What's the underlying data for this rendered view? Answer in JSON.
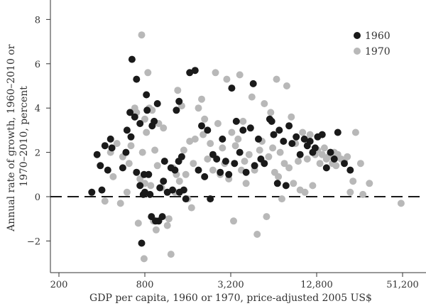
{
  "chart_data": {
    "type": "scatter",
    "title": "",
    "xlabel": "GDP per capita, 1960 or 1970, price-adjusted 2005 US$",
    "ylabel_lines": [
      "Annual rate of growth, 1960–2010 or",
      "1970–2010, percent"
    ],
    "x_scale": "log2",
    "xlim": [
      200,
      60000
    ],
    "ylim": [
      -3,
      8.7
    ],
    "x_ticks": [
      200,
      800,
      3200,
      12800,
      51200
    ],
    "x_tick_labels": [
      "200",
      "800",
      "3,200",
      "12,800",
      "51,200"
    ],
    "y_ticks": [
      -2,
      0,
      2,
      4,
      6,
      8
    ],
    "y_tick_labels": [
      "−2",
      "0",
      "2",
      "4",
      "6",
      "8"
    ],
    "reference_line": {
      "y": 0,
      "style": "dashed"
    },
    "legend_position": "top-right",
    "series": [
      {
        "name": "1960",
        "color": "#1a1a1a",
        "points": [
          [
            340,
            0.2
          ],
          [
            370,
            1.9
          ],
          [
            390,
            1.4
          ],
          [
            400,
            0.3
          ],
          [
            420,
            2.3
          ],
          [
            440,
            1.2
          ],
          [
            460,
            2.6
          ],
          [
            470,
            2.2
          ],
          [
            560,
            1.3
          ],
          [
            590,
            2.0
          ],
          [
            600,
            3.0
          ],
          [
            630,
            3.8
          ],
          [
            640,
            2.7
          ],
          [
            650,
            6.2
          ],
          [
            680,
            3.6
          ],
          [
            700,
            1.1
          ],
          [
            700,
            5.3
          ],
          [
            740,
            3.3
          ],
          [
            740,
            0.5
          ],
          [
            760,
            -2.1
          ],
          [
            780,
            0.1
          ],
          [
            790,
            1.0
          ],
          [
            800,
            0.2
          ],
          [
            820,
            4.6
          ],
          [
            830,
            3.9
          ],
          [
            850,
            1.0
          ],
          [
            870,
            0.1
          ],
          [
            890,
            -0.9
          ],
          [
            900,
            3.2
          ],
          [
            930,
            3.4
          ],
          [
            950,
            -1.1
          ],
          [
            980,
            4.2
          ],
          [
            1000,
            -1.1
          ],
          [
            1020,
            0.4
          ],
          [
            1060,
            -0.9
          ],
          [
            1080,
            0.7
          ],
          [
            1100,
            1.6
          ],
          [
            1150,
            0.2
          ],
          [
            1220,
            1.3
          ],
          [
            1250,
            0.3
          ],
          [
            1300,
            1.2
          ],
          [
            1330,
            3.9
          ],
          [
            1380,
            1.6
          ],
          [
            1390,
            4.3
          ],
          [
            1400,
            0.2
          ],
          [
            1450,
            1.8
          ],
          [
            1500,
            0.3
          ],
          [
            1550,
            -0.1
          ],
          [
            1650,
            5.6
          ],
          [
            1800,
            5.7
          ],
          [
            1900,
            1.2
          ],
          [
            2000,
            3.2
          ],
          [
            2100,
            0.9
          ],
          [
            2200,
            3.0
          ],
          [
            2300,
            -0.1
          ],
          [
            2400,
            1.9
          ],
          [
            2550,
            1.7
          ],
          [
            2700,
            1.1
          ],
          [
            2800,
            2.6
          ],
          [
            2950,
            1.6
          ],
          [
            3100,
            1.0
          ],
          [
            3250,
            4.9
          ],
          [
            3400,
            1.5
          ],
          [
            3500,
            3.4
          ],
          [
            3700,
            2.0
          ],
          [
            3900,
            3.0
          ],
          [
            4100,
            1.1
          ],
          [
            4400,
            3.1
          ],
          [
            4600,
            5.1
          ],
          [
            4700,
            1.4
          ],
          [
            5000,
            2.6
          ],
          [
            5200,
            1.7
          ],
          [
            5500,
            1.5
          ],
          [
            6000,
            3.5
          ],
          [
            6200,
            3.4
          ],
          [
            6400,
            2.8
          ],
          [
            6800,
            0.6
          ],
          [
            7000,
            3.0
          ],
          [
            7500,
            2.5
          ],
          [
            7800,
            0.5
          ],
          [
            8200,
            3.2
          ],
          [
            8600,
            2.4
          ],
          [
            9200,
            2.7
          ],
          [
            9800,
            1.9
          ],
          [
            10500,
            2.6
          ],
          [
            11000,
            2.3
          ],
          [
            11500,
            2.5
          ],
          [
            12000,
            2.0
          ],
          [
            12500,
            2.2
          ],
          [
            13000,
            2.7
          ],
          [
            14000,
            2.8
          ],
          [
            15000,
            1.3
          ],
          [
            16000,
            2.0
          ],
          [
            17000,
            1.7
          ],
          [
            18000,
            2.9
          ],
          [
            20000,
            1.5
          ],
          [
            22000,
            1.2
          ]
        ]
      },
      {
        "name": "1970",
        "color": "#b8b8b8",
        "points": [
          [
            420,
            -0.2
          ],
          [
            460,
            2.0
          ],
          [
            480,
            0.9
          ],
          [
            510,
            2.4
          ],
          [
            540,
            -0.3
          ],
          [
            560,
            1.8
          ],
          [
            600,
            0.2
          ],
          [
            620,
            1.5
          ],
          [
            640,
            2.3
          ],
          [
            680,
            4.0
          ],
          [
            700,
            3.8
          ],
          [
            720,
            -1.2
          ],
          [
            740,
            0.8
          ],
          [
            760,
            7.3
          ],
          [
            770,
            2.0
          ],
          [
            790,
            -2.8
          ],
          [
            800,
            3.5
          ],
          [
            800,
            0.6
          ],
          [
            820,
            2.9
          ],
          [
            840,
            5.6
          ],
          [
            860,
            4.0
          ],
          [
            880,
            0.5
          ],
          [
            900,
            3.9
          ],
          [
            920,
            -1.1
          ],
          [
            940,
            2.1
          ],
          [
            960,
            -1.5
          ],
          [
            980,
            1.4
          ],
          [
            1000,
            3.3
          ],
          [
            1050,
            0.4
          ],
          [
            1080,
            3.1
          ],
          [
            1100,
            1.6
          ],
          [
            1150,
            -1.3
          ],
          [
            1180,
            -1.0
          ],
          [
            1220,
            -2.6
          ],
          [
            1260,
            1.3
          ],
          [
            1300,
            0.2
          ],
          [
            1330,
            1.0
          ],
          [
            1360,
            4.8
          ],
          [
            1400,
            0.7
          ],
          [
            1450,
            4.1
          ],
          [
            1500,
            2.1
          ],
          [
            1550,
            1.0
          ],
          [
            1600,
            -0.1
          ],
          [
            1650,
            2.5
          ],
          [
            1700,
            -0.5
          ],
          [
            1750,
            1.5
          ],
          [
            1800,
            2.6
          ],
          [
            1900,
            4.0
          ],
          [
            2000,
            4.4
          ],
          [
            2050,
            2.8
          ],
          [
            2100,
            3.5
          ],
          [
            2200,
            1.7
          ],
          [
            2300,
            2.4
          ],
          [
            2400,
            1.2
          ],
          [
            2500,
            5.6
          ],
          [
            2600,
            3.3
          ],
          [
            2700,
            1.0
          ],
          [
            2800,
            2.2
          ],
          [
            2900,
            1.5
          ],
          [
            3000,
            5.3
          ],
          [
            3100,
            0.8
          ],
          [
            3250,
            2.9
          ],
          [
            3350,
            -1.1
          ],
          [
            3450,
            2.3
          ],
          [
            3600,
            2.6
          ],
          [
            3700,
            5.5
          ],
          [
            3800,
            1.2
          ],
          [
            3900,
            3.4
          ],
          [
            4000,
            1.6
          ],
          [
            4100,
            0.6
          ],
          [
            4300,
            1.9
          ],
          [
            4500,
            4.5
          ],
          [
            4700,
            1.2
          ],
          [
            4900,
            -1.7
          ],
          [
            5100,
            2.1
          ],
          [
            5300,
            2.5
          ],
          [
            5500,
            4.2
          ],
          [
            5700,
            -0.9
          ],
          [
            5900,
            1.8
          ],
          [
            6100,
            3.8
          ],
          [
            6300,
            2.2
          ],
          [
            6500,
            1.1
          ],
          [
            6700,
            5.3
          ],
          [
            6900,
            0.9
          ],
          [
            7100,
            2.0
          ],
          [
            7300,
            -0.1
          ],
          [
            7600,
            1.5
          ],
          [
            7900,
            5.0
          ],
          [
            8200,
            1.3
          ],
          [
            8500,
            3.6
          ],
          [
            8800,
            0.6
          ],
          [
            9100,
            2.4
          ],
          [
            9500,
            1.6
          ],
          [
            9800,
            0.3
          ],
          [
            10200,
            2.9
          ],
          [
            10600,
            0.2
          ],
          [
            11000,
            1.7
          ],
          [
            11500,
            2.8
          ],
          [
            12000,
            0.5
          ],
          [
            12500,
            1.9
          ],
          [
            13000,
            2.1
          ],
          [
            13500,
            1.5
          ],
          [
            14000,
            1.9
          ],
          [
            14500,
            2.2
          ],
          [
            15000,
            1.7
          ],
          [
            15500,
            1.8
          ],
          [
            16000,
            2.0
          ],
          [
            16500,
            1.5
          ],
          [
            17000,
            2.0
          ],
          [
            17500,
            1.4
          ],
          [
            18000,
            1.9
          ],
          [
            19000,
            1.7
          ],
          [
            20000,
            1.6
          ],
          [
            21000,
            1.8
          ],
          [
            22000,
            0.2
          ],
          [
            23000,
            0.7
          ],
          [
            24000,
            2.9
          ],
          [
            26000,
            1.5
          ],
          [
            27000,
            0.1
          ],
          [
            30000,
            0.6
          ],
          [
            50000,
            -0.3
          ]
        ]
      }
    ]
  }
}
